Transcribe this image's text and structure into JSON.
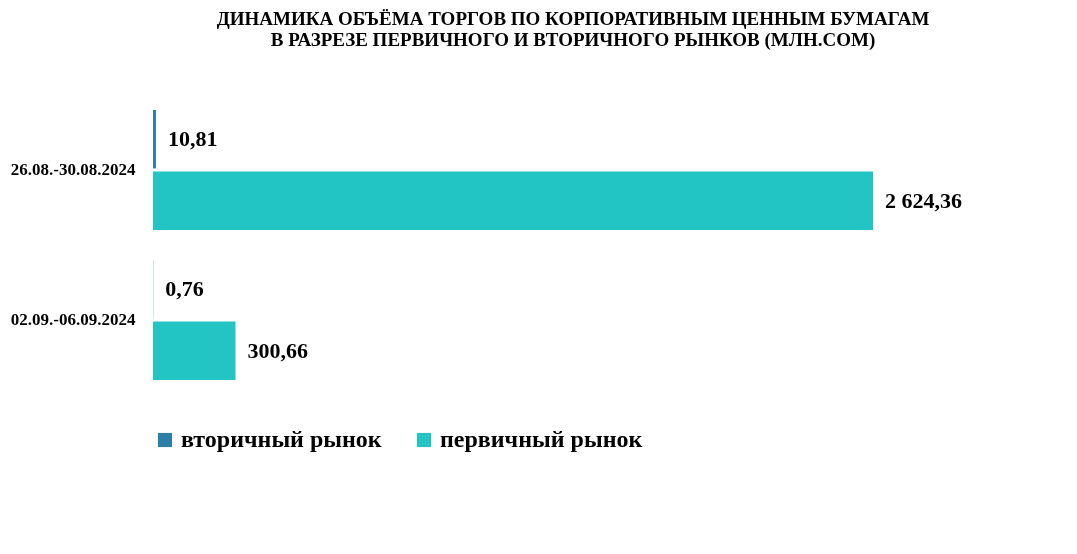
{
  "chart_data": {
    "type": "bar",
    "orientation": "horizontal",
    "title": "ДИНАМИКА ОБЪЁМА ТОРГОВ ПО КОРПОРАТИВНЫМ ЦЕННЫМ БУМАГАМ\nВ РАЗРЕЗЕ ПЕРВИЧНОГО И ВТОРИЧНОГО РЫНКОВ  (МЛН.СОМ)",
    "categories": [
      "26.08.-30.08.2024",
      "02.09.-06.09.2024"
    ],
    "series": [
      {
        "name": "вторичный рынок",
        "color": "#2e7fa8",
        "values": [
          10.81,
          0.76
        ],
        "value_labels": [
          "10,81",
          "0,76"
        ]
      },
      {
        "name": "первичный рынок",
        "color": "#22c4c4",
        "values": [
          2624.36,
          300.66
        ],
        "value_labels": [
          "2 624,36",
          "300,66"
        ]
      }
    ],
    "legend": "bottom",
    "tick_labels": "y"
  }
}
